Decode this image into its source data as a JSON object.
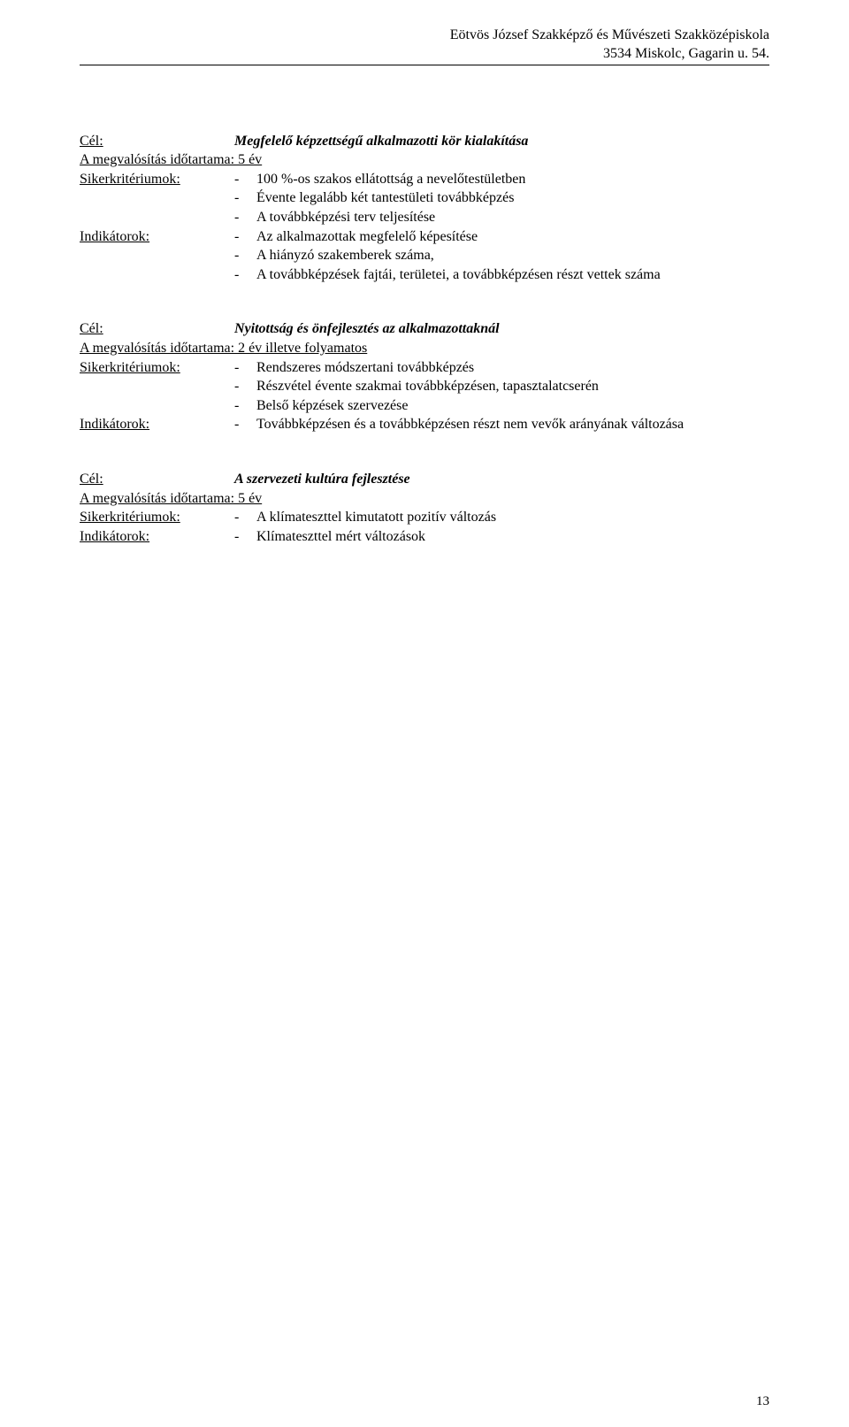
{
  "header": {
    "line1": "Eötvös József Szakképző és Művészeti Szakközépiskola",
    "line2": "3534 Miskolc, Gagarin u. 54."
  },
  "goal1": {
    "celLabel": "Cél:",
    "celValue": "Megfelelő képzettségű alkalmazotti kör kialakítása",
    "timeframe": "A megvalósítás időtartama: 5 év",
    "sikerLabel": "Sikerkritériumok:",
    "s1": "100 %-os szakos ellátottság a nevelőtestületben",
    "s2": "Évente legalább két tantestületi továbbképzés",
    "s3": "A továbbképzési terv teljesítése",
    "indLabel": "Indikátorok:",
    "i1": "Az alkalmazottak megfelelő képesítése",
    "i2": "A hiányzó szakemberek száma,",
    "i3": "A továbbképzések fajtái, területei, a továbbképzésen részt vettek száma"
  },
  "goal2": {
    "celLabel": "Cél:",
    "celValue": "Nyitottság és önfejlesztés az alkalmazottaknál",
    "timeframe": "A megvalósítás időtartama: 2 év illetve folyamatos",
    "sikerLabel": "Sikerkritériumok:",
    "s1": "Rendszeres módszertani továbbképzés",
    "s2": "Részvétel évente szakmai továbbképzésen, tapasztalatcserén",
    "s3": "Belső képzések szervezése",
    "indLabel": "Indikátorok:",
    "i1": "Továbbképzésen és a továbbképzésen részt nem vevők arányának változása"
  },
  "goal3": {
    "celLabel": "Cél:",
    "celValue": "A szervezeti kultúra fejlesztése",
    "timeframe": "A megvalósítás időtartama: 5 év",
    "sikerLabel": "Sikerkritériumok:",
    "s1": "A klímateszttel kimutatott pozitív változás",
    "indLabel": "Indikátorok:",
    "i1": "Klímateszttel mért változások"
  },
  "pageNumber": "13",
  "dash": "-"
}
